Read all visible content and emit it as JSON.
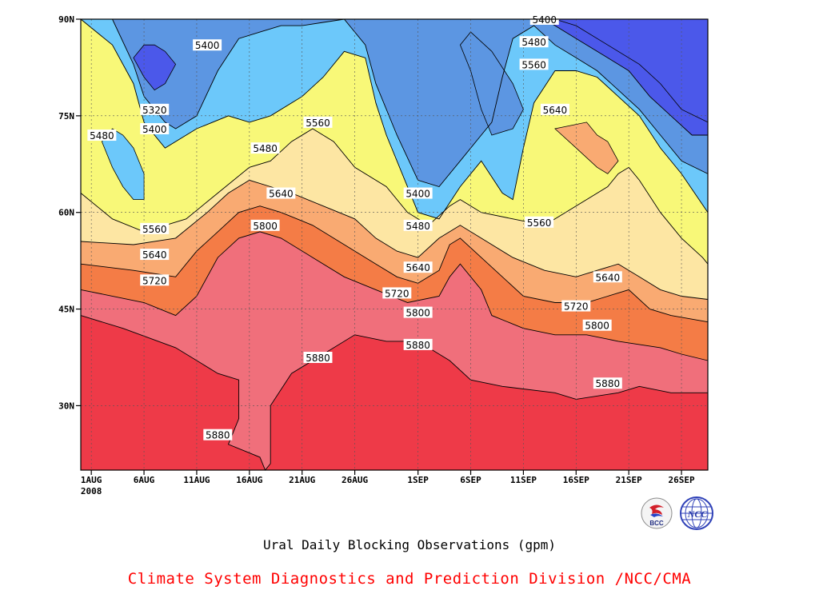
{
  "page": {
    "subtitle": "Ural Daily Blocking Observations (gpm)",
    "credit": "Climate System Diagnostics and Prediction Division /NCC/CMA",
    "logos": {
      "left": "BCC",
      "right": "NCC"
    }
  },
  "chart_data": {
    "type": "contour",
    "title": "",
    "xlabel": "",
    "ylabel": "",
    "grid": true,
    "x_ticks": [
      {
        "day": 0,
        "label": "1AUG",
        "sublabel": "2008"
      },
      {
        "day": 5,
        "label": "6AUG"
      },
      {
        "day": 10,
        "label": "11AUG"
      },
      {
        "day": 15,
        "label": "16AUG"
      },
      {
        "day": 20,
        "label": "21AUG"
      },
      {
        "day": 25,
        "label": "26AUG"
      },
      {
        "day": 31,
        "label": "1SEP"
      },
      {
        "day": 36,
        "label": "6SEP"
      },
      {
        "day": 41,
        "label": "11SEP"
      },
      {
        "day": 46,
        "label": "16SEP"
      },
      {
        "day": 51,
        "label": "21SEP"
      },
      {
        "day": 56,
        "label": "26SEP"
      }
    ],
    "y_ticks": [
      {
        "lat": 90,
        "label": "90N"
      },
      {
        "lat": 75,
        "label": "75N"
      },
      {
        "lat": 60,
        "label": "60N"
      },
      {
        "lat": 45,
        "label": "45N"
      },
      {
        "lat": 30,
        "label": "30N"
      }
    ],
    "xlim": [
      -1,
      58.5
    ],
    "ylim": [
      20,
      90
    ],
    "levels": [
      5320,
      5400,
      5480,
      5560,
      5640,
      5720,
      5800,
      5880
    ],
    "colors": [
      "#1a2ee8",
      "#4b58ea",
      "#5c96e2",
      "#6cc8fa",
      "#f8f878",
      "#fde6a3",
      "#f9aa72",
      "#f47c46",
      "#f06f7b",
      "#ee3a48"
    ],
    "boundaries": [
      {
        "level": 5880,
        "points": [
          [
            -1,
            44
          ],
          [
            3,
            42
          ],
          [
            8,
            39
          ],
          [
            12,
            35
          ],
          [
            14,
            34
          ],
          [
            14,
            28
          ],
          [
            13,
            24
          ],
          [
            16,
            22
          ],
          [
            16.5,
            20
          ],
          [
            17,
            21
          ],
          [
            17,
            30
          ],
          [
            19,
            35
          ],
          [
            22,
            38
          ],
          [
            25,
            41
          ],
          [
            28,
            40
          ],
          [
            30,
            40
          ],
          [
            32,
            39
          ],
          [
            34,
            37
          ],
          [
            36,
            34
          ],
          [
            39,
            33
          ],
          [
            44,
            32
          ],
          [
            46,
            31
          ],
          [
            50,
            32
          ],
          [
            52,
            33
          ],
          [
            55,
            32
          ],
          [
            58.5,
            32
          ]
        ]
      },
      {
        "level": 5800,
        "points": [
          [
            -1,
            48
          ],
          [
            5,
            46
          ],
          [
            8,
            44
          ],
          [
            10,
            47
          ],
          [
            12,
            53
          ],
          [
            14,
            56
          ],
          [
            16,
            57
          ],
          [
            18,
            56
          ],
          [
            21,
            53
          ],
          [
            24,
            50
          ],
          [
            27,
            48
          ],
          [
            30,
            46
          ],
          [
            33,
            47
          ],
          [
            34,
            50
          ],
          [
            35,
            52
          ],
          [
            37,
            48
          ],
          [
            38,
            44
          ],
          [
            41,
            42
          ],
          [
            44,
            41
          ],
          [
            47,
            41
          ],
          [
            50,
            40
          ],
          [
            54,
            39
          ],
          [
            56,
            38
          ],
          [
            58.5,
            37
          ]
        ]
      },
      {
        "level": 5720,
        "points": [
          [
            -1,
            52
          ],
          [
            4,
            51
          ],
          [
            8,
            50
          ],
          [
            10,
            54
          ],
          [
            12,
            57
          ],
          [
            14,
            60
          ],
          [
            16,
            61
          ],
          [
            18,
            60
          ],
          [
            21,
            58
          ],
          [
            24,
            55
          ],
          [
            27,
            52
          ],
          [
            29,
            50
          ],
          [
            31,
            49
          ],
          [
            33,
            51
          ],
          [
            34,
            55
          ],
          [
            35,
            56
          ],
          [
            37,
            53
          ],
          [
            39,
            50
          ],
          [
            41,
            47
          ],
          [
            44,
            46
          ],
          [
            47,
            46
          ],
          [
            49,
            47
          ],
          [
            51,
            48
          ],
          [
            53,
            45
          ],
          [
            55,
            44
          ],
          [
            58.5,
            43
          ]
        ]
      },
      {
        "level": 5640,
        "points": [
          [
            -1,
            55.5
          ],
          [
            4,
            55
          ],
          [
            8,
            56
          ],
          [
            11,
            60
          ],
          [
            13,
            63
          ],
          [
            15,
            65
          ],
          [
            17,
            64
          ],
          [
            19,
            63
          ],
          [
            22,
            61
          ],
          [
            25,
            59
          ],
          [
            27,
            56
          ],
          [
            29,
            54
          ],
          [
            31,
            53
          ],
          [
            33,
            56
          ],
          [
            35,
            58
          ],
          [
            37,
            56
          ],
          [
            40,
            53
          ],
          [
            43,
            51
          ],
          [
            46,
            50
          ],
          [
            48,
            51
          ],
          [
            50,
            52
          ],
          [
            52,
            50
          ],
          [
            54,
            48
          ],
          [
            56,
            47
          ],
          [
            58.5,
            46.5
          ]
        ]
      },
      {
        "level": 5560,
        "points": [
          [
            -1,
            63
          ],
          [
            2,
            59
          ],
          [
            5,
            57
          ],
          [
            9,
            59
          ],
          [
            12,
            63
          ],
          [
            15,
            67
          ],
          [
            17,
            68
          ],
          [
            19,
            71
          ],
          [
            21,
            73
          ],
          [
            23,
            71
          ],
          [
            25,
            67
          ],
          [
            28,
            64
          ],
          [
            30,
            60
          ],
          [
            32,
            58
          ],
          [
            34,
            61
          ],
          [
            35,
            62
          ],
          [
            37,
            60
          ],
          [
            40,
            59
          ],
          [
            43,
            58
          ],
          [
            45,
            60
          ],
          [
            47,
            62
          ],
          [
            49,
            64
          ],
          [
            50,
            66
          ],
          [
            51,
            67
          ],
          [
            52,
            65
          ],
          [
            54,
            60
          ],
          [
            56,
            56
          ],
          [
            58,
            53
          ],
          [
            58.5,
            52
          ]
        ]
      },
      {
        "level": 5480,
        "points": [
          [
            -1,
            90
          ],
          [
            2,
            86
          ],
          [
            4,
            80
          ],
          [
            5,
            74
          ],
          [
            7,
            70
          ],
          [
            10,
            73
          ],
          [
            13,
            75
          ],
          [
            15,
            74
          ],
          [
            17,
            75
          ],
          [
            20,
            78
          ],
          [
            22,
            81
          ],
          [
            24,
            85
          ],
          [
            26,
            84
          ],
          [
            27,
            77
          ],
          [
            28,
            72
          ],
          [
            30,
            64
          ],
          [
            31,
            60
          ],
          [
            33,
            59
          ],
          [
            35,
            64
          ],
          [
            37,
            68
          ],
          [
            39,
            63
          ],
          [
            40,
            62
          ],
          [
            41,
            70
          ],
          [
            42,
            77
          ],
          [
            44,
            82
          ],
          [
            46,
            82
          ],
          [
            48,
            81
          ],
          [
            50,
            78
          ],
          [
            52,
            75
          ],
          [
            54,
            70
          ],
          [
            56,
            66
          ],
          [
            58.5,
            60
          ]
        ]
      },
      {
        "level": 5400,
        "points": [
          [
            2,
            90
          ],
          [
            4,
            83
          ],
          [
            5,
            78
          ],
          [
            7,
            74
          ],
          [
            8,
            73
          ],
          [
            10,
            75
          ],
          [
            12,
            82
          ],
          [
            14,
            87
          ],
          [
            16,
            88
          ],
          [
            18,
            89
          ],
          [
            20,
            89
          ],
          [
            22,
            89.5
          ],
          [
            24,
            90
          ],
          [
            26,
            86
          ],
          [
            27,
            80
          ],
          [
            29,
            72
          ],
          [
            31,
            65
          ],
          [
            33,
            64
          ],
          [
            35,
            68
          ],
          [
            37,
            72
          ],
          [
            38,
            74
          ],
          [
            39,
            81
          ],
          [
            40,
            87
          ],
          [
            42,
            89
          ],
          [
            44,
            86
          ],
          [
            46,
            84
          ],
          [
            48,
            82
          ],
          [
            50,
            79
          ],
          [
            52,
            76
          ],
          [
            54,
            72
          ],
          [
            56,
            68
          ],
          [
            58.5,
            66
          ]
        ]
      },
      {
        "level": 5320,
        "points": [
          [
            43,
            90
          ],
          [
            45,
            88
          ],
          [
            47,
            86
          ],
          [
            49,
            84
          ],
          [
            51,
            82
          ],
          [
            53,
            78
          ],
          [
            55,
            75
          ],
          [
            57,
            72
          ],
          [
            58.5,
            72
          ]
        ]
      }
    ],
    "regions": [
      {
        "name": "lt5320-region",
        "level": "<5320",
        "points": [
          [
            44,
            90
          ],
          [
            46,
            89
          ],
          [
            48,
            87
          ],
          [
            50,
            85
          ],
          [
            52,
            83
          ],
          [
            54,
            80
          ],
          [
            56,
            76
          ],
          [
            58.5,
            74
          ],
          [
            58.5,
            90
          ]
        ]
      },
      {
        "name": "lt5400-core",
        "level": "<5400",
        "points": [
          [
            4,
            84
          ],
          [
            5,
            81
          ],
          [
            6,
            79
          ],
          [
            7,
            80
          ],
          [
            8,
            83
          ],
          [
            7,
            85
          ],
          [
            6,
            86
          ],
          [
            5,
            86
          ]
        ]
      },
      {
        "name": "lt5480-north",
        "level": "<5480",
        "points": [
          [
            36,
            88
          ],
          [
            38,
            85
          ],
          [
            40,
            80
          ],
          [
            41,
            76
          ],
          [
            40,
            73
          ],
          [
            38,
            72
          ],
          [
            37,
            76
          ],
          [
            36,
            82
          ],
          [
            35,
            86
          ]
        ]
      },
      {
        "name": "lt5560-islet",
        "level": "<5560",
        "points": [
          [
            1,
            71
          ],
          [
            2,
            67
          ],
          [
            3,
            64
          ],
          [
            4,
            62
          ],
          [
            5,
            62
          ],
          [
            5,
            66
          ],
          [
            4,
            70
          ],
          [
            3,
            72
          ],
          [
            2,
            73
          ]
        ]
      },
      {
        "name": "gt5640-islet",
        "level": ">5640",
        "points": [
          [
            44,
            73
          ],
          [
            46,
            70
          ],
          [
            48,
            67
          ],
          [
            49,
            66
          ],
          [
            50,
            68
          ],
          [
            49,
            71
          ],
          [
            48,
            72
          ],
          [
            47,
            74
          ]
        ]
      }
    ],
    "labels": [
      {
        "text": "5400",
        "day": 11,
        "lat": 86
      },
      {
        "text": "5320",
        "day": 6,
        "lat": 76
      },
      {
        "text": "5400",
        "day": 6,
        "lat": 73
      },
      {
        "text": "5480",
        "day": 1,
        "lat": 72
      },
      {
        "text": "5480",
        "day": 16.5,
        "lat": 70
      },
      {
        "text": "5560",
        "day": 21.5,
        "lat": 74
      },
      {
        "text": "5640",
        "day": 18,
        "lat": 63
      },
      {
        "text": "5560",
        "day": 6,
        "lat": 57.5
      },
      {
        "text": "5800",
        "day": 16.5,
        "lat": 58
      },
      {
        "text": "5640",
        "day": 6,
        "lat": 53.5
      },
      {
        "text": "5720",
        "day": 6,
        "lat": 49.5
      },
      {
        "text": "5400",
        "day": 31,
        "lat": 63
      },
      {
        "text": "5480",
        "day": 31,
        "lat": 58
      },
      {
        "text": "5640",
        "day": 31,
        "lat": 51.5
      },
      {
        "text": "5720",
        "day": 29,
        "lat": 47.5
      },
      {
        "text": "5800",
        "day": 31,
        "lat": 44.5
      },
      {
        "text": "5880",
        "day": 21.5,
        "lat": 37.5
      },
      {
        "text": "5880",
        "day": 31,
        "lat": 39.5
      },
      {
        "text": "5880",
        "day": 12,
        "lat": 25.5
      },
      {
        "text": "5400",
        "day": 43,
        "lat": 90
      },
      {
        "text": "5480",
        "day": 42,
        "lat": 86.5
      },
      {
        "text": "5560",
        "day": 42,
        "lat": 83
      },
      {
        "text": "5640",
        "day": 44,
        "lat": 76
      },
      {
        "text": "5560",
        "day": 42.5,
        "lat": 58.5
      },
      {
        "text": "5640",
        "day": 49,
        "lat": 50
      },
      {
        "text": "5720",
        "day": 46,
        "lat": 45.5
      },
      {
        "text": "5800",
        "day": 48,
        "lat": 42.5
      },
      {
        "text": "5880",
        "day": 49,
        "lat": 33.5
      }
    ]
  }
}
